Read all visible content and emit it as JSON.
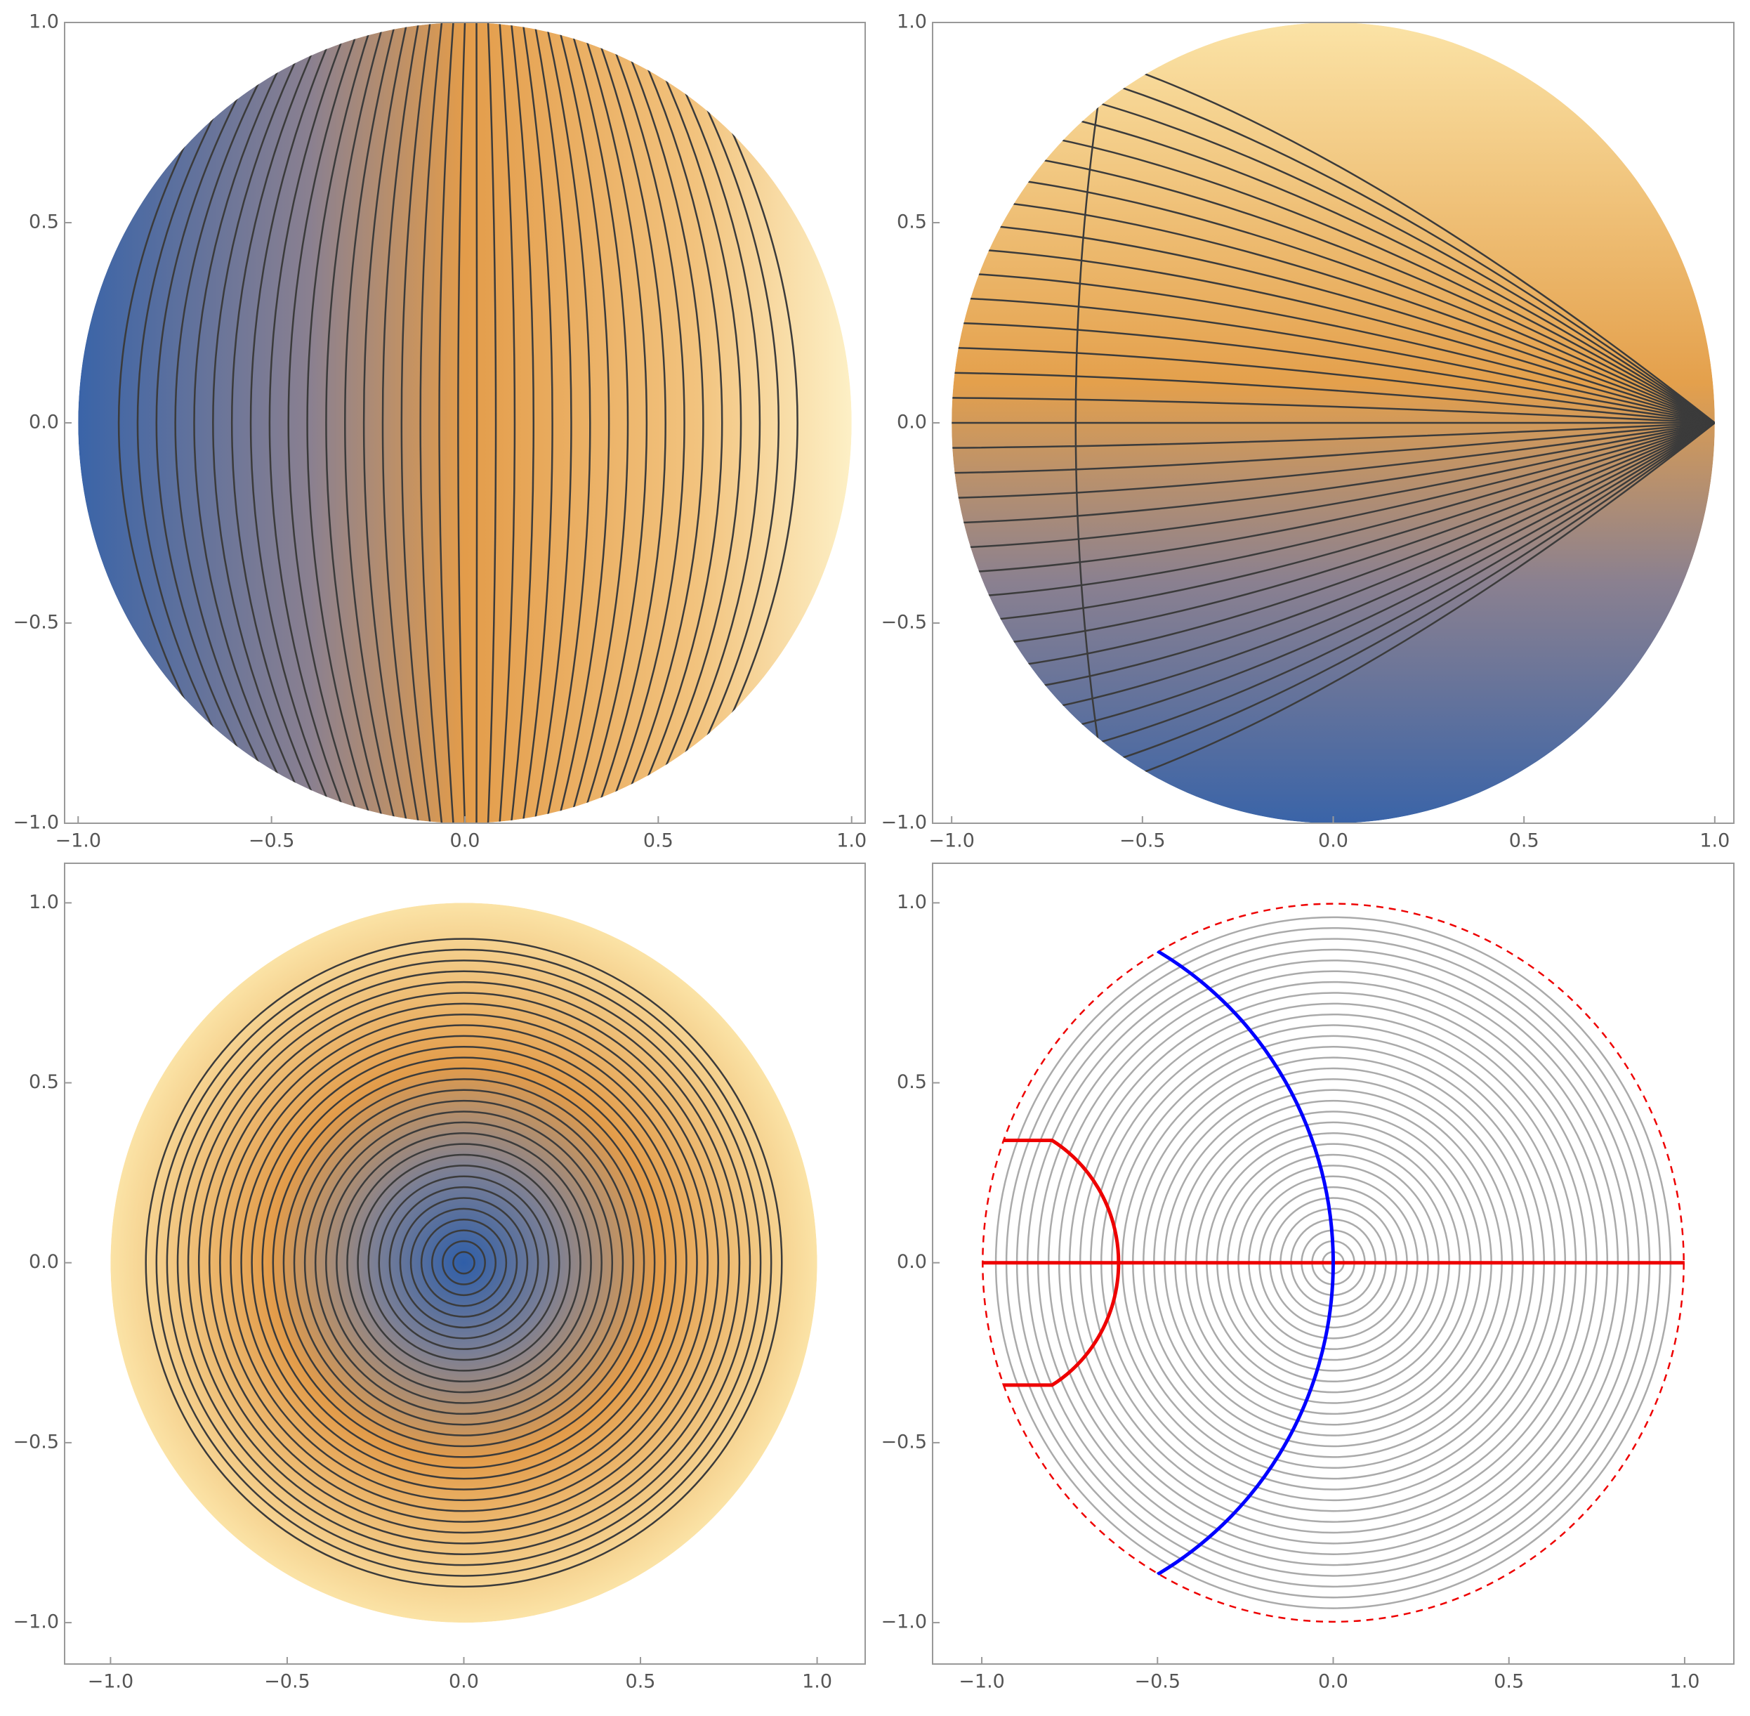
{
  "chart_data": [
    {
      "type": "contour",
      "xlim": [
        -1.035,
        1.035
      ],
      "ylim": [
        -1,
        1
      ],
      "xticks": [
        {
          "value": -1,
          "label": "−1.0"
        },
        {
          "value": -0.5,
          "label": "−0.5"
        },
        {
          "value": 0,
          "label": "0.0"
        },
        {
          "value": 0.5,
          "label": "0.5"
        },
        {
          "value": 1,
          "label": "1.0"
        }
      ],
      "yticks": [
        {
          "value": -1,
          "label": "−1.0"
        },
        {
          "value": -0.5,
          "label": "−0.5"
        },
        {
          "value": 0,
          "label": "0.0"
        },
        {
          "value": 0.5,
          "label": "0.5"
        },
        {
          "value": 1,
          "label": "1.0"
        }
      ]
    },
    {
      "type": "contour",
      "xlim": [
        -1.05,
        1.05
      ],
      "ylim": [
        -1,
        1
      ],
      "xticks": [
        {
          "value": -1,
          "label": "−1.0"
        },
        {
          "value": -0.5,
          "label": "−0.5"
        },
        {
          "value": 0,
          "label": "0.0"
        },
        {
          "value": 0.5,
          "label": "0.5"
        },
        {
          "value": 1,
          "label": "1.0"
        }
      ],
      "yticks": [
        {
          "value": -1,
          "label": "−1.0"
        },
        {
          "value": -0.5,
          "label": "−0.5"
        },
        {
          "value": 0,
          "label": "0.0"
        },
        {
          "value": 0.5,
          "label": "0.5"
        },
        {
          "value": 1,
          "label": "1.0"
        }
      ]
    },
    {
      "type": "contour",
      "xlim": [
        -1.13,
        1.136
      ],
      "ylim": [
        -1.115,
        1.11
      ],
      "xticks": [
        {
          "value": -1,
          "label": "−1.0"
        },
        {
          "value": -0.5,
          "label": "−0.5"
        },
        {
          "value": 0,
          "label": "0.0"
        },
        {
          "value": 0.5,
          "label": "0.5"
        },
        {
          "value": 1,
          "label": "1.0"
        }
      ],
      "yticks": [
        {
          "value": -1,
          "label": "−1.0"
        },
        {
          "value": -0.5,
          "label": "−0.5"
        },
        {
          "value": 0,
          "label": "0.0"
        },
        {
          "value": 0.5,
          "label": "0.5"
        },
        {
          "value": 1,
          "label": "1.0"
        }
      ]
    },
    {
      "type": "contour-lines",
      "xlim": [
        -1.14,
        1.14
      ],
      "ylim": [
        -1.115,
        1.11
      ],
      "xticks": [
        {
          "value": -1,
          "label": "−1.0"
        },
        {
          "value": -0.5,
          "label": "−0.5"
        },
        {
          "value": 0,
          "label": "0.0"
        },
        {
          "value": 0.5,
          "label": "0.5"
        },
        {
          "value": 1,
          "label": "1.0"
        }
      ],
      "yticks": [
        {
          "value": -1,
          "label": "−1.0"
        },
        {
          "value": -0.5,
          "label": "−0.5"
        },
        {
          "value": 0,
          "label": "0.0"
        },
        {
          "value": 0.5,
          "label": "0.5"
        },
        {
          "value": 1,
          "label": "1.0"
        }
      ]
    }
  ]
}
